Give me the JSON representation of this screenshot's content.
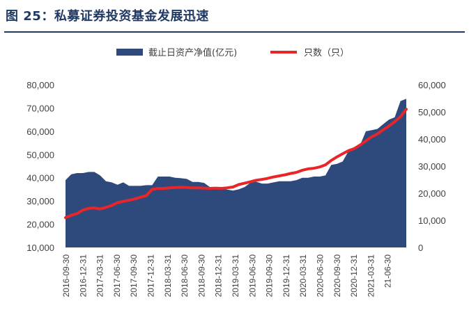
{
  "figure": {
    "title": "图 25：私募证券投资基金发展迅速"
  },
  "chart_data": {
    "type": "area+line",
    "legend": {
      "placement": "top-center"
    },
    "x": [
      "2016-09-30",
      "2016-10-31",
      "2016-11-30",
      "2016-12-31",
      "2017-01-31",
      "2017-02-28",
      "2017-03-31",
      "2017-04-30",
      "2017-05-31",
      "2017-06-30",
      "2017-07-31",
      "2017-08-31",
      "2017-09-30",
      "2017-10-31",
      "2017-11-30",
      "2017-12-31",
      "2018-01-31",
      "2018-02-28",
      "2018-03-31",
      "2018-04-30",
      "2018-05-31",
      "2018-06-30",
      "2018-07-31",
      "2018-08-31",
      "2018-09-30",
      "2018-10-31",
      "2018-11-30",
      "2018-12-31",
      "2019-01-31",
      "2019-02-28",
      "2019-03-31",
      "2019-04-30",
      "2019-05-31",
      "2019-06-30",
      "2019-07-31",
      "2019-08-31",
      "2019-09-30",
      "2019-10-31",
      "2019-11-30",
      "2019-12-31",
      "2020-01-31",
      "2020-02-29",
      "2020-03-31",
      "2020-04-30",
      "2020-05-31",
      "2020-06-30",
      "2020-07-31",
      "2020-08-31",
      "2020-09-30",
      "2020-10-31",
      "2020-11-30",
      "2020-12-31",
      "2021-01-31",
      "2021-02-28",
      "2021-03-31",
      "2021-04-30",
      "2021-05-31",
      "2021-06-30",
      "2021-07-31",
      "2021-08-31"
    ],
    "x_tick_labels": [
      "2016-09-30",
      "2016-12-31",
      "2017-03-31",
      "2017-06-30",
      "2017-09-30",
      "2017-12-31",
      "2018-03-31",
      "2018-06-30",
      "2018-09-30",
      "2018-12-31",
      "2019-03-31",
      "2019-06-30",
      "2019-09-30",
      "2019-12-31",
      "2020-03-31",
      "2020-06-30",
      "2020-09-30",
      "2020-12-31",
      "2021-03-31",
      "21-06-30"
    ],
    "series": [
      {
        "name": "截止日资产净值(亿元)",
        "type": "area",
        "axis": "left",
        "color": "#2e4a7d",
        "values": [
          39000,
          41500,
          42000,
          42000,
          42500,
          42500,
          41000,
          38500,
          38000,
          37000,
          38000,
          36500,
          36500,
          36500,
          36800,
          36800,
          40500,
          40500,
          40500,
          40000,
          39800,
          39500,
          38200,
          38200,
          37800,
          36000,
          35500,
          35200,
          34900,
          34500,
          35000,
          36000,
          37800,
          38300,
          37500,
          37500,
          38000,
          38500,
          38500,
          38500,
          39000,
          40000,
          40000,
          40500,
          40500,
          41000,
          45500,
          46000,
          47000,
          51500,
          52000,
          54000,
          60000,
          60500,
          61000,
          63000,
          65000,
          66000,
          73000,
          74000
        ]
      },
      {
        "name": "只数（只）",
        "type": "line",
        "axis": "right",
        "color": "#e8262a",
        "values": [
          11000,
          11900,
          12500,
          13800,
          14400,
          14600,
          14200,
          14800,
          15500,
          16500,
          17000,
          17400,
          17900,
          18600,
          19100,
          21400,
          21800,
          21800,
          22000,
          22100,
          22200,
          22100,
          22000,
          22000,
          21900,
          21800,
          21900,
          21800,
          22000,
          22300,
          23200,
          23700,
          24200,
          24800,
          25100,
          25500,
          26000,
          26400,
          26800,
          27300,
          27700,
          28500,
          29000,
          29200,
          29700,
          30500,
          32100,
          33400,
          34600,
          35700,
          36500,
          37800,
          39300,
          40800,
          41900,
          43400,
          44800,
          46400,
          48200,
          51000
        ]
      }
    ],
    "y_left": {
      "range": [
        10000,
        80000
      ],
      "ticks": [
        "80,000",
        "70,000",
        "60,000",
        "50,000",
        "40,000",
        "30,000",
        "20,000",
        "10,000"
      ]
    },
    "y_right": {
      "range": [
        0,
        60000
      ],
      "ticks": [
        "60,000",
        "50,000",
        "40,000",
        "30,000",
        "20,000",
        "10,000",
        "0"
      ]
    },
    "grid": false
  }
}
